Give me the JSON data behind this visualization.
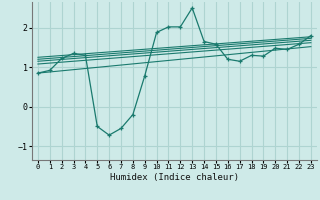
{
  "xlabel": "Humidex (Indice chaleur)",
  "background_color": "#ceeae8",
  "grid_color": "#aed4d1",
  "line_color": "#1a7a6e",
  "xlim": [
    -0.5,
    23.5
  ],
  "ylim": [
    -1.35,
    2.65
  ],
  "yticks": [
    -1,
    0,
    1,
    2
  ],
  "xticks": [
    0,
    1,
    2,
    3,
    4,
    5,
    6,
    7,
    8,
    9,
    10,
    11,
    12,
    13,
    14,
    15,
    16,
    17,
    18,
    19,
    20,
    21,
    22,
    23
  ],
  "humidex_x": [
    0,
    1,
    2,
    3,
    4,
    5,
    6,
    7,
    8,
    9,
    10,
    11,
    12,
    13,
    14,
    15,
    16,
    17,
    18,
    19,
    20,
    21,
    22,
    23
  ],
  "humidex_y": [
    0.85,
    0.92,
    1.22,
    1.35,
    1.3,
    -0.5,
    -0.72,
    -0.55,
    -0.2,
    0.78,
    1.88,
    2.02,
    2.02,
    2.5,
    1.65,
    1.58,
    1.2,
    1.15,
    1.3,
    1.28,
    1.48,
    1.45,
    1.58,
    1.8
  ],
  "trend_lines": [
    {
      "x": [
        0,
        23
      ],
      "y": [
        0.85,
        1.52
      ]
    },
    {
      "x": [
        0,
        23
      ],
      "y": [
        1.08,
        1.62
      ]
    },
    {
      "x": [
        0,
        23
      ],
      "y": [
        1.15,
        1.68
      ]
    },
    {
      "x": [
        0,
        23
      ],
      "y": [
        1.2,
        1.73
      ]
    },
    {
      "x": [
        0,
        23
      ],
      "y": [
        1.25,
        1.77
      ]
    }
  ]
}
